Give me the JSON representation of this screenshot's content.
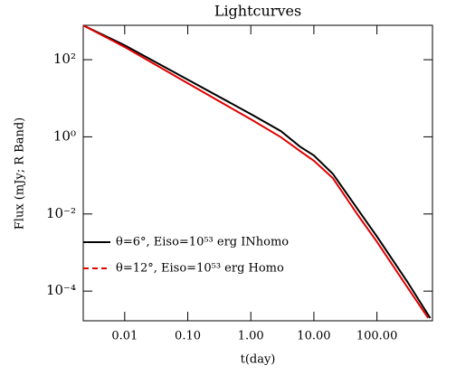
{
  "chart_data": {
    "type": "line",
    "title": "Lightcurves",
    "x_label": "t(day)",
    "y_label": "Flux (mJy; R Band)",
    "xscale": "log",
    "yscale": "log",
    "xlim": [
      0.0022,
      760
    ],
    "ylim": [
      1.7e-05,
      780
    ],
    "xticks": [
      0.01,
      {
        "value": 0.1,
        "label": "0.10"
      },
      {
        "value": 1,
        "label": "1.00"
      },
      {
        "value": 10,
        "label": "10.00"
      },
      {
        "value": 100,
        "label": "100.00"
      }
    ],
    "yticks": [
      {
        "value": 0.0001,
        "label": "10⁻⁴"
      },
      {
        "value": 0.01,
        "label": "10⁻²"
      },
      {
        "value": 1,
        "label": "10⁰"
      },
      {
        "value": 100,
        "label": "10²"
      }
    ],
    "legend": "center-left",
    "series": [
      {
        "name": "θ=6°, Eiso=10⁵³ erg INhomo",
        "color": "#000000",
        "legend_dash": false,
        "x": [
          0.0022,
          0.01,
          0.1,
          1,
          3,
          6,
          10,
          20,
          50,
          100,
          300,
          700
        ],
        "values": [
          776,
          237,
          30.5,
          3.9,
          1.41,
          0.56,
          0.33,
          0.11,
          0.013,
          0.0026,
          0.00018,
          2e-05
        ]
      },
      {
        "name": "θ=12°, Eiso=10⁵³ erg Homo",
        "color": "#e00000",
        "legend_dash": true,
        "x": [
          0.0022,
          0.01,
          0.1,
          1,
          3,
          6,
          10,
          20,
          50,
          100,
          300,
          650
        ],
        "values": [
          776,
          213,
          24.5,
          2.85,
          0.98,
          0.43,
          0.24,
          0.085,
          0.0093,
          0.0019,
          0.00013,
          2e-05
        ]
      }
    ]
  }
}
